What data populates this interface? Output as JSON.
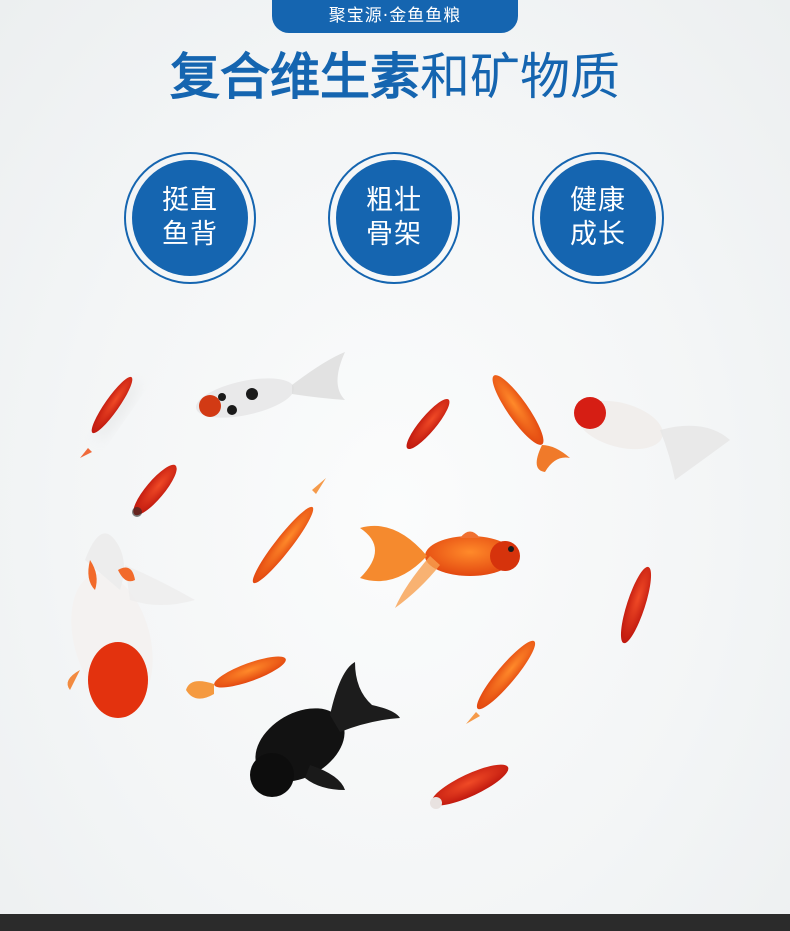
{
  "brand": {
    "label": "聚宝源·金鱼鱼粮"
  },
  "headline": {
    "bold_part": "复合维生素",
    "light_part": "和矿物质"
  },
  "badges": [
    {
      "line1": "挺直",
      "line2": "鱼背"
    },
    {
      "line1": "粗壮",
      "line2": "骨架"
    },
    {
      "line1": "健康",
      "line2": "成长"
    }
  ],
  "colors": {
    "accent": "#1565b0",
    "fish_orange": "#f0621e",
    "fish_red": "#d8281a",
    "fish_black": "#141414",
    "background": "#f4f6f7"
  }
}
